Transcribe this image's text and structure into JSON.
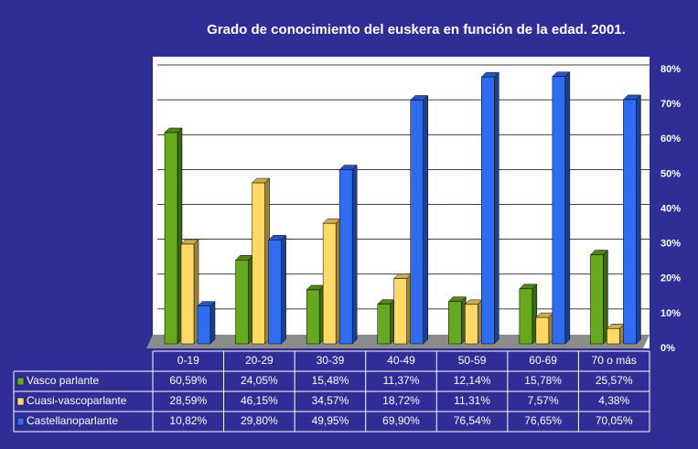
{
  "chart_data": {
    "type": "bar",
    "title": "Grado de conocimiento del euskera en función de la edad. 2001.",
    "categories": [
      "0-19",
      "20-29",
      "30-39",
      "40-49",
      "50-59",
      "60-69",
      "70 o más"
    ],
    "series": [
      {
        "name": "Vasco parlante",
        "color": "#66a81e",
        "values": [
          60.59,
          24.05,
          15.48,
          11.37,
          12.14,
          15.78,
          25.57
        ],
        "value_labels": [
          "60,59%",
          "24,05%",
          "15,48%",
          "11,37%",
          "12,14%",
          "15,78%",
          "25,57%"
        ]
      },
      {
        "name": "Cuasi-vascoparlante",
        "color": "#ffd966",
        "values": [
          28.59,
          46.15,
          34.57,
          18.72,
          11.31,
          7.57,
          4.38
        ],
        "value_labels": [
          "28,59%",
          "46,15%",
          "34,57%",
          "18,72%",
          "11,31%",
          "7,57%",
          "4,38%"
        ]
      },
      {
        "name": "Castellanoparlante",
        "color": "#2f6cf0",
        "values": [
          10.82,
          29.8,
          49.95,
          69.9,
          76.54,
          76.65,
          70.05
        ],
        "value_labels": [
          "10,82%",
          "29,80%",
          "49,95%",
          "69,90%",
          "76,54%",
          "76,65%",
          "70,05%"
        ]
      }
    ],
    "ylim": [
      0,
      80
    ],
    "yticks": [
      {
        "value": 0,
        "label": "0%"
      },
      {
        "value": 10,
        "label": "10%"
      },
      {
        "value": 20,
        "label": "20%"
      },
      {
        "value": 30,
        "label": "30%"
      },
      {
        "value": 40,
        "label": "40%"
      },
      {
        "value": 50,
        "label": "50%"
      },
      {
        "value": 60,
        "label": "60%"
      },
      {
        "value": 70,
        "label": "70%"
      },
      {
        "value": 80,
        "label": "80%"
      }
    ],
    "grid": true
  }
}
